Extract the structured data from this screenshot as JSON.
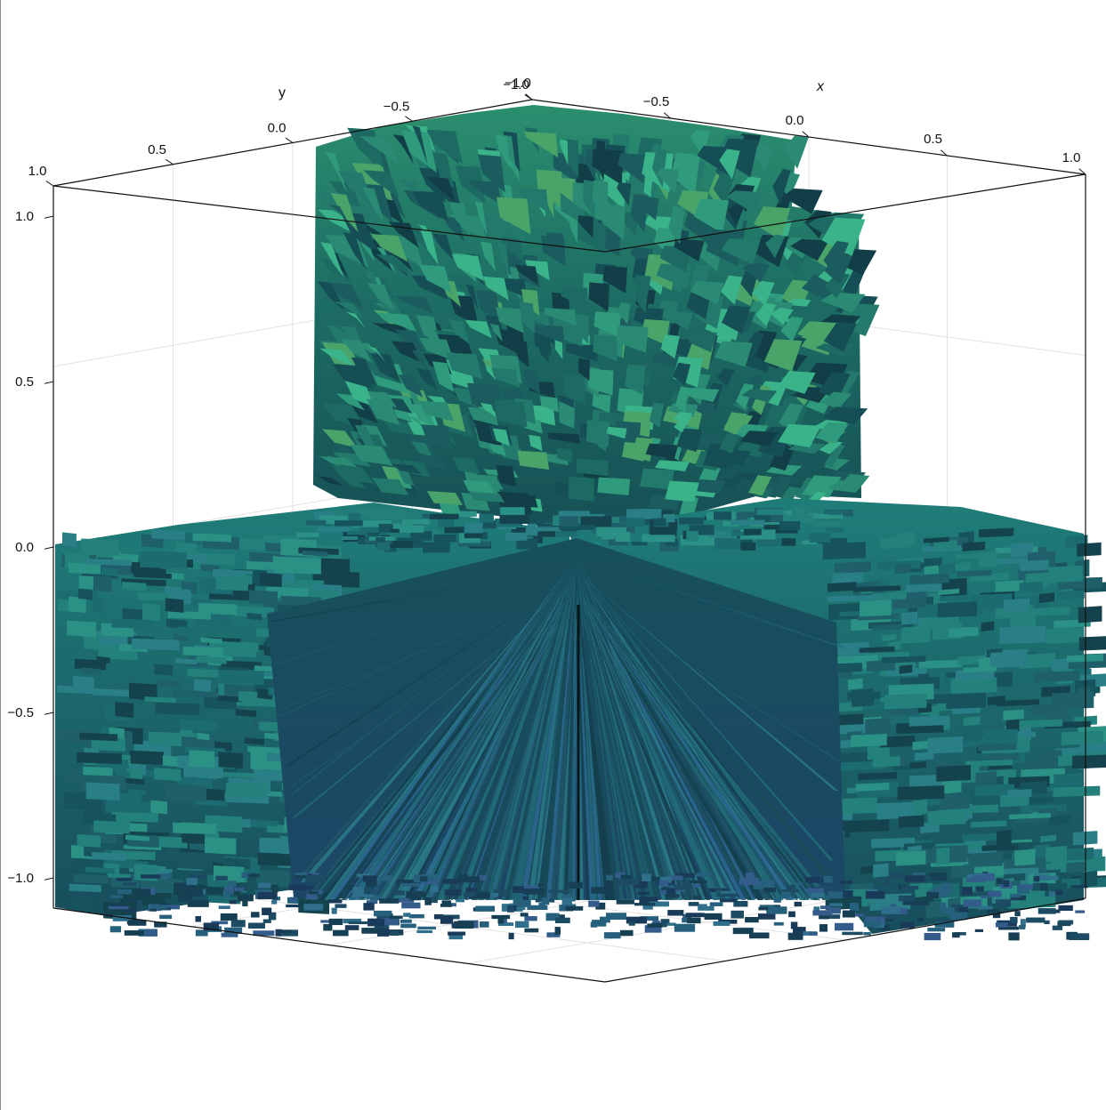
{
  "chart_data": {
    "type": "surface3d",
    "title": "",
    "axes": {
      "x": {
        "label": "x",
        "ticks": [
          "−1.0",
          "−0.5",
          "0.0",
          "0.5",
          "1.0"
        ],
        "range": [
          -1.0,
          1.0
        ]
      },
      "y": {
        "label": "y",
        "ticks": [
          "1.0",
          "0.5",
          "0.0",
          "−0.5",
          "−1.0"
        ],
        "range": [
          -1.0,
          1.0
        ]
      },
      "z": {
        "label": "",
        "ticks": [
          "1.0",
          "0.5",
          "0.0",
          "−0.5",
          "−1.0"
        ],
        "range": [
          -1.0,
          1.0
        ]
      }
    },
    "grid": true,
    "legend": "none",
    "surface": "jagged radial block surface: vertical wall in the back half (z from 0 to 1), flat shelf at z = 0 extending to the left and right, converging toward the origin",
    "colormap": [
      "#0e3b44",
      "#1f6f6d",
      "#2a9a84",
      "#3fbf8a",
      "#3a5a8c"
    ]
  }
}
